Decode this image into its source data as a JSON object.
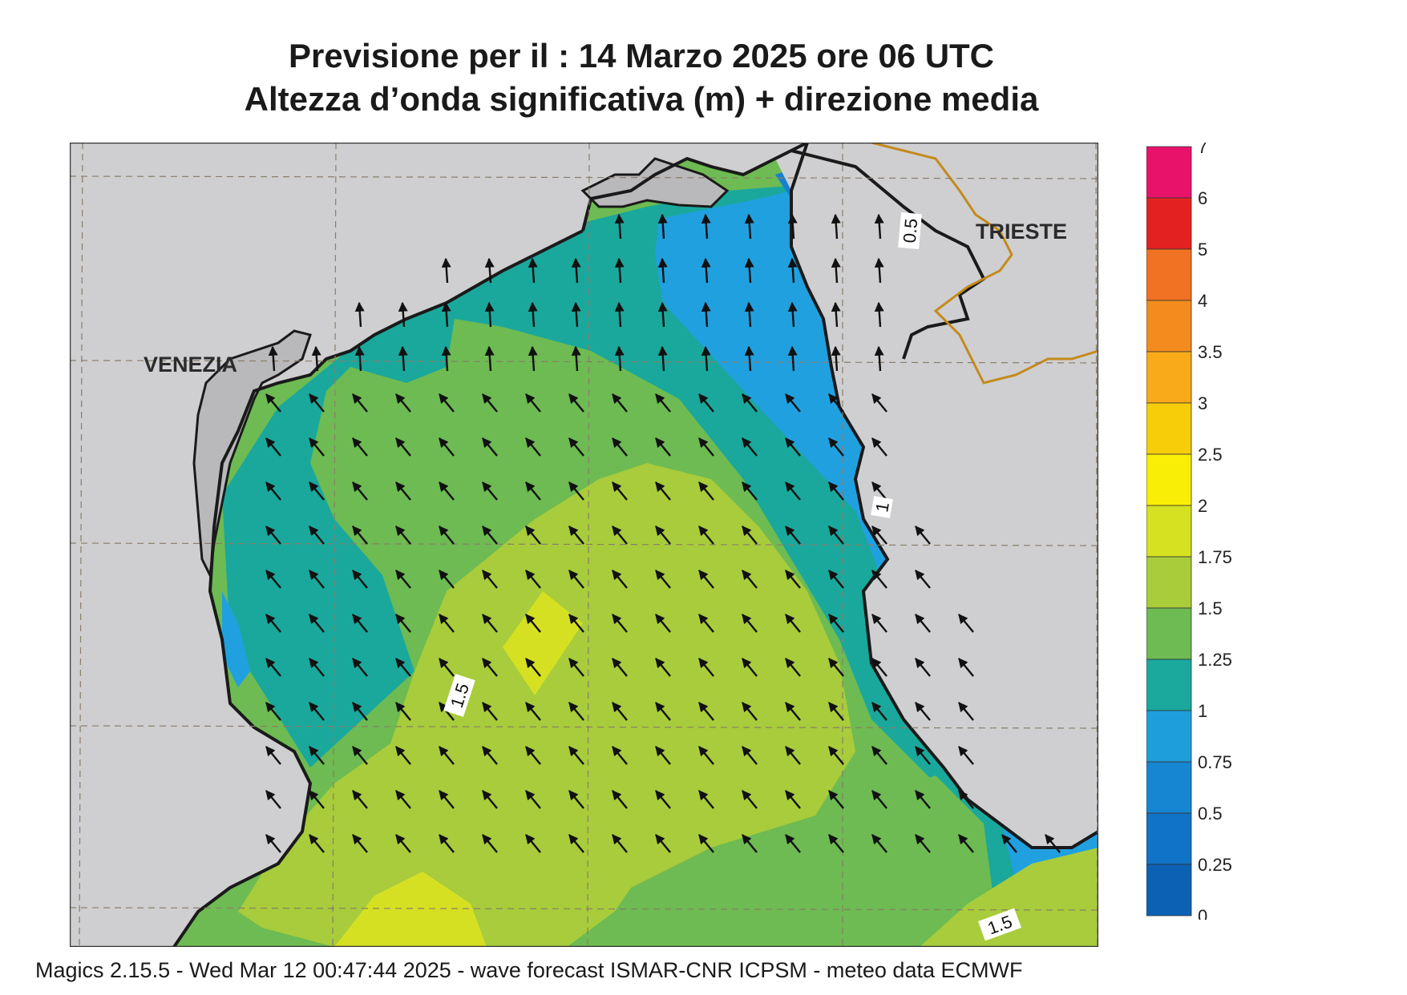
{
  "title": {
    "line1": "Previsione per il  :  14   Marzo   2025   ore 06 UTC",
    "line2": "Altezza d’onda significativa (m) + direzione media"
  },
  "cities": [
    {
      "name": "VENEZIA"
    },
    {
      "name": "TRIESTE"
    }
  ],
  "contour_labels": [
    "0.5",
    "1",
    "1.5",
    "1.5"
  ],
  "colorbar": {
    "labels": [
      "7",
      "6",
      "5",
      "4",
      "3.5",
      "3",
      "2.5",
      "2",
      "1.75",
      "1.5",
      "1.25",
      "1",
      "0.75",
      "0.5",
      "0.25",
      "0"
    ],
    "colors": [
      "#e8126a",
      "#e42121",
      "#f07222",
      "#f38b1f",
      "#f8aa18",
      "#f7cd0a",
      "#f9ee05",
      "#d5e121",
      "#a9cc3b",
      "#6dbb52",
      "#1ba99e",
      "#1e9fdc",
      "#1686d2",
      "#1173c5",
      "#0b62b5"
    ]
  },
  "zone_colors": {
    "land": "#cfcfd1",
    "land_dark": "#b9b9bb",
    "h_0_25": "#0e6ab8",
    "h_0_5": "#1680d0",
    "h_0_75": "#21a0df",
    "h_1": "#1aa89c",
    "h_1_25": "#6dbb52",
    "h_1_5": "#a8cc3b",
    "h_1_75": "#d6e022",
    "coast": "#1a1a1a",
    "border": "#c48a1c"
  },
  "footer": "Magics 2.15.5 - Wed Mar 12 00:47:44 2025 - wave forecast  ISMAR-CNR  ICPSM - meteo data   ECMWF"
}
